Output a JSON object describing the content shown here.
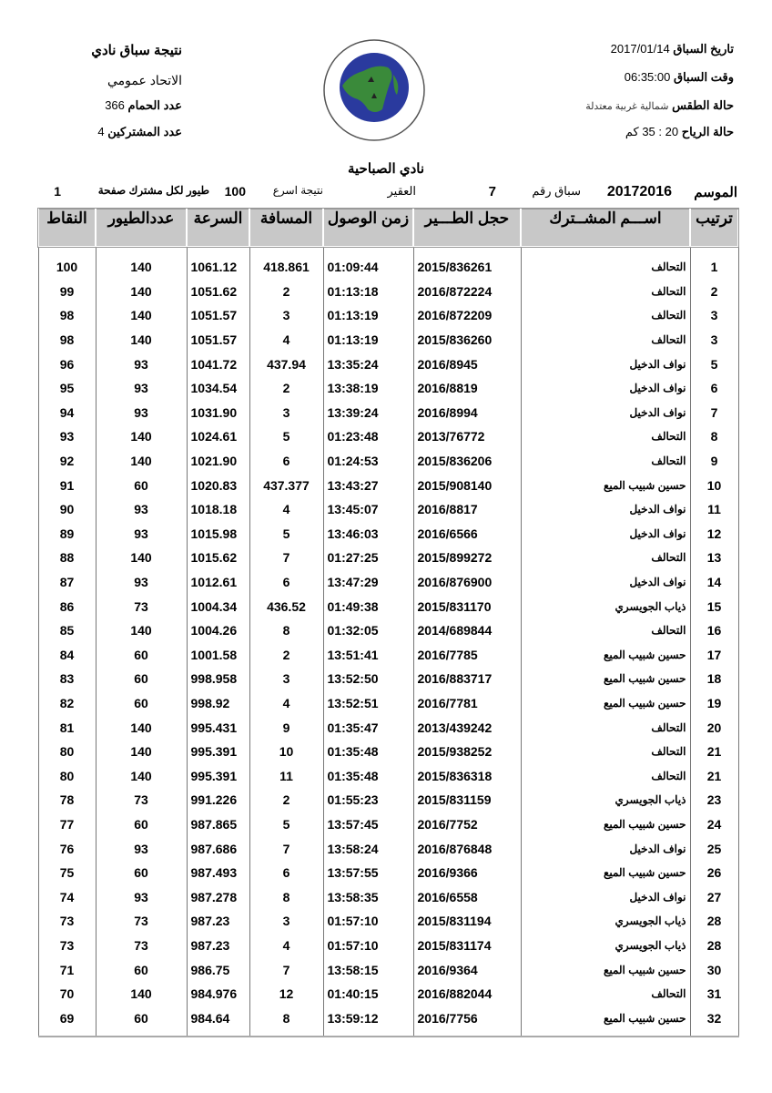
{
  "header_right": {
    "race_date_label": "تاريخ السباق",
    "race_date": "2017/01/14",
    "race_time_label": "وقت السباق",
    "race_time": "06:35:00",
    "weather_label": "حالة الطقس",
    "weather": "شمالية غربية معتدلة",
    "wind_label": "حالة الرياح",
    "wind": "20 : 35 كم"
  },
  "header_left": {
    "title": "نتيجة سباق نادي",
    "federation": "الاتحاد عمومي",
    "pigeons_label": "عدد الحمام",
    "pigeons": "366",
    "participants_label": "عدد المشتركين",
    "participants": "4"
  },
  "logo": {
    "text": "الاتحاد الكويتي لسباق حمام الزاجل — KUWAIT FEDERATION FOR RACING PIGEON",
    "colors": {
      "blue": "#2a3a9e",
      "green": "#3a8a3a"
    }
  },
  "club": "نادي  الصباحية",
  "meta": {
    "season_label": "الموسم",
    "season": "20172016",
    "race_no_label": "سباق رقم",
    "race_no": "7",
    "location": "العقير",
    "fastest_label": "نتيجة اسرع",
    "fastest": "100",
    "per_label": "طيور لكل مشترك صفحة",
    "page": "1"
  },
  "columns": [
    "ترتيب",
    "اســـم المشــترك",
    "حجل الطـــير",
    "زمن الوصول",
    "المسافة",
    "السرعة",
    "عددالطيور",
    "النقاط"
  ],
  "rows": [
    [
      "1",
      "التحالف",
      "2015/836261",
      "01:09:44",
      "418.861",
      "1061.12",
      "140",
      "100"
    ],
    [
      "2",
      "التحالف",
      "2016/872224",
      "01:13:18",
      "2",
      "1051.62",
      "140",
      "99"
    ],
    [
      "3",
      "التحالف",
      "2016/872209",
      "01:13:19",
      "3",
      "1051.57",
      "140",
      "98"
    ],
    [
      "3",
      "التحالف",
      "2015/836260",
      "01:13:19",
      "4",
      "1051.57",
      "140",
      "98"
    ],
    [
      "5",
      "نواف الدخيل",
      "2016/8945",
      "13:35:24",
      "437.94",
      "1041.72",
      "93",
      "96"
    ],
    [
      "6",
      "نواف الدخيل",
      "2016/8819",
      "13:38:19",
      "2",
      "1034.54",
      "93",
      "95"
    ],
    [
      "7",
      "نواف الدخيل",
      "2016/8994",
      "13:39:24",
      "3",
      "1031.90",
      "93",
      "94"
    ],
    [
      "8",
      "التحالف",
      "2013/76772",
      "01:23:48",
      "5",
      "1024.61",
      "140",
      "93"
    ],
    [
      "9",
      "التحالف",
      "2015/836206",
      "01:24:53",
      "6",
      "1021.90",
      "140",
      "92"
    ],
    [
      "10",
      "حسين شبيب الميع",
      "2015/908140",
      "13:43:27",
      "437.377",
      "1020.83",
      "60",
      "91"
    ],
    [
      "11",
      "نواف الدخيل",
      "2016/8817",
      "13:45:07",
      "4",
      "1018.18",
      "93",
      "90"
    ],
    [
      "12",
      "نواف الدخيل",
      "2016/6566",
      "13:46:03",
      "5",
      "1015.98",
      "93",
      "89"
    ],
    [
      "13",
      "التحالف",
      "2015/899272",
      "01:27:25",
      "7",
      "1015.62",
      "140",
      "88"
    ],
    [
      "14",
      "نواف الدخيل",
      "2016/876900",
      "13:47:29",
      "6",
      "1012.61",
      "93",
      "87"
    ],
    [
      "15",
      "ذياب الجويسري",
      "2015/831170",
      "01:49:38",
      "436.52",
      "1004.34",
      "73",
      "86"
    ],
    [
      "16",
      "التحالف",
      "2014/689844",
      "01:32:05",
      "8",
      "1004.26",
      "140",
      "85"
    ],
    [
      "17",
      "حسين شبيب الميع",
      "2016/7785",
      "13:51:41",
      "2",
      "1001.58",
      "60",
      "84"
    ],
    [
      "18",
      "حسين شبيب الميع",
      "2016/883717",
      "13:52:50",
      "3",
      "998.958",
      "60",
      "83"
    ],
    [
      "19",
      "حسين شبيب الميع",
      "2016/7781",
      "13:52:51",
      "4",
      "998.92",
      "60",
      "82"
    ],
    [
      "20",
      "التحالف",
      "2013/439242",
      "01:35:47",
      "9",
      "995.431",
      "140",
      "81"
    ],
    [
      "21",
      "التحالف",
      "2015/938252",
      "01:35:48",
      "10",
      "995.391",
      "140",
      "80"
    ],
    [
      "21",
      "التحالف",
      "2015/836318",
      "01:35:48",
      "11",
      "995.391",
      "140",
      "80"
    ],
    [
      "23",
      "ذياب الجويسري",
      "2015/831159",
      "01:55:23",
      "2",
      "991.226",
      "73",
      "78"
    ],
    [
      "24",
      "حسين شبيب الميع",
      "2016/7752",
      "13:57:45",
      "5",
      "987.865",
      "60",
      "77"
    ],
    [
      "25",
      "نواف الدخيل",
      "2016/876848",
      "13:58:24",
      "7",
      "987.686",
      "93",
      "76"
    ],
    [
      "26",
      "حسين شبيب الميع",
      "2016/9366",
      "13:57:55",
      "6",
      "987.493",
      "60",
      "75"
    ],
    [
      "27",
      "نواف الدخيل",
      "2016/6558",
      "13:58:35",
      "8",
      "987.278",
      "93",
      "74"
    ],
    [
      "28",
      "ذياب الجويسري",
      "2015/831194",
      "01:57:10",
      "3",
      "987.23",
      "73",
      "73"
    ],
    [
      "28",
      "ذياب الجويسري",
      "2015/831174",
      "01:57:10",
      "4",
      "987.23",
      "73",
      "73"
    ],
    [
      "30",
      "حسين شبيب الميع",
      "2016/9364",
      "13:58:15",
      "7",
      "986.75",
      "60",
      "71"
    ],
    [
      "31",
      "التحالف",
      "2016/882044",
      "01:40:15",
      "12",
      "984.976",
      "140",
      "70"
    ],
    [
      "32",
      "حسين شبيب الميع",
      "2016/7756",
      "13:59:12",
      "8",
      "984.64",
      "60",
      "69"
    ]
  ]
}
